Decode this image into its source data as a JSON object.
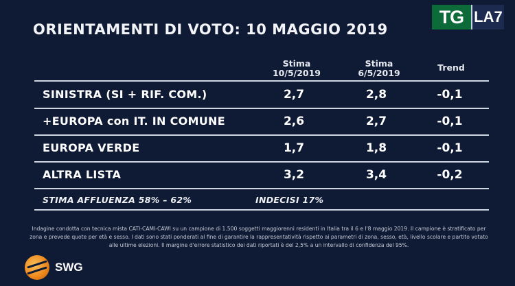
{
  "title": "ORIENTAMENTI DI VOTO: 10 MAGGIO 2019",
  "logo": {
    "tg": "TG",
    "la7": "LA7"
  },
  "columns": {
    "stima1_line1": "Stima",
    "stima1_line2": "10/5/2019",
    "stima2_line1": "Stima",
    "stima2_line2": "6/5/2019",
    "trend": "Trend"
  },
  "rows": [
    {
      "label": "SINISTRA (SI + RIF. COM.)",
      "current": "2,7",
      "previous": "2,8",
      "trend": "-0,1"
    },
    {
      "label": "+EUROPA con IT. IN COMUNE",
      "current": "2,6",
      "previous": "2,7",
      "trend": "-0,1"
    },
    {
      "label": "EUROPA VERDE",
      "current": "1,7",
      "previous": "1,8",
      "trend": "-0,1"
    },
    {
      "label": "ALTRA LISTA",
      "current": "3,2",
      "previous": "3,4",
      "trend": "-0,2"
    }
  ],
  "footer": {
    "affluenza": "STIMA AFFLUENZA  58% – 62%",
    "indecisi": "INDECISI  17%"
  },
  "note": "Indagine condotta con tecnica mista CATI-CAMI-CAWI su un campione di 1.500 soggetti maggiorenni residenti in Italia tra il 6 e l'8 maggio 2019. Il campione è stratificato per zona e prevede quote per età e sesso. I dati sono stati ponderati al fine di garantire la rappresentatività rispetto ai parametri di zona, sesso, età, livello scolare e partito votato alle ultime elezioni. Il margine d'errore statistico dei dati riportati è del 2,5% a un intervallo di confidenza del 95%.",
  "brand": "SWG",
  "icons": {
    "brand_logo": "swg-globe-icon"
  },
  "colors": {
    "background": "#0f1a34",
    "tg_green": "#0d6b3a",
    "swg_orange": "#ef8a1e"
  }
}
